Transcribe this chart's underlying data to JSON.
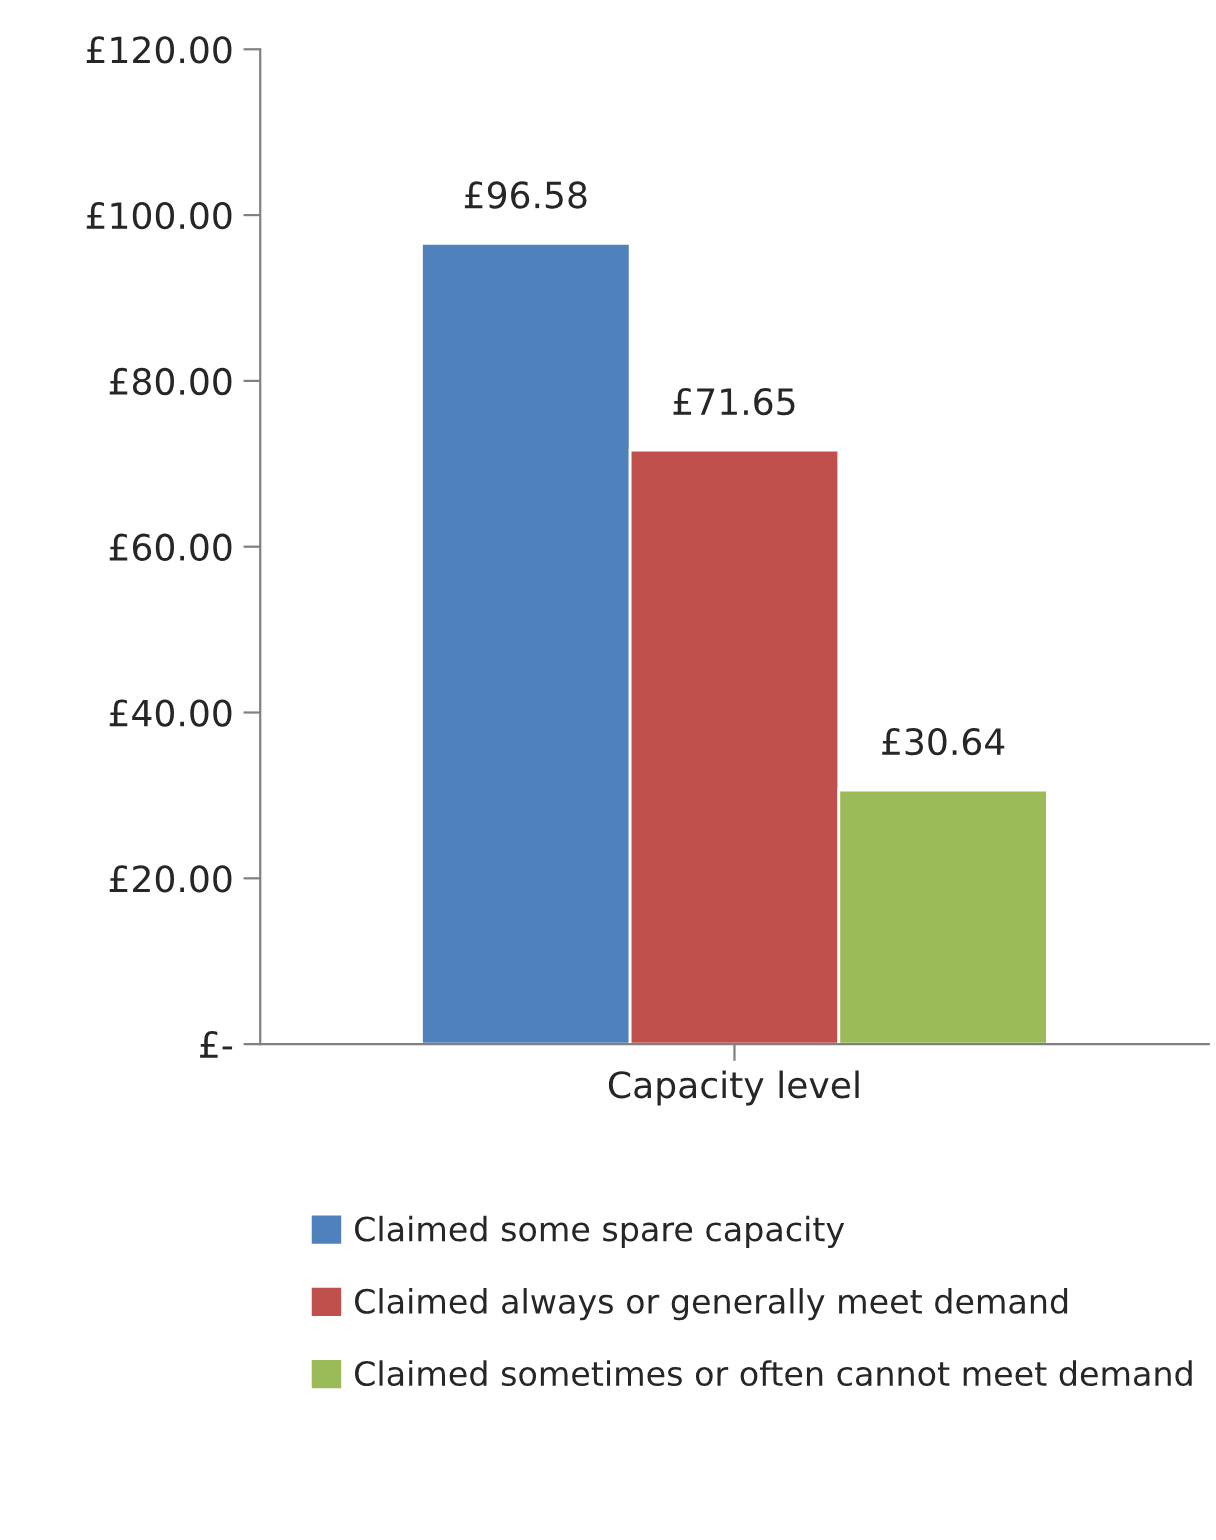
{
  "chart_data": {
    "type": "bar",
    "categories": [
      "Capacity level"
    ],
    "series": [
      {
        "name": "Claimed some spare capacity",
        "color": "#4f81bd",
        "values": [
          96.58
        ],
        "value_labels": [
          "£96.58"
        ]
      },
      {
        "name": "Claimed always or generally meet demand",
        "color": "#c0504d",
        "values": [
          71.65
        ],
        "value_labels": [
          "£71.65"
        ]
      },
      {
        "name": "Claimed sometimes or often cannot meet demand",
        "color": "#9bbb59",
        "values": [
          30.64
        ],
        "value_labels": [
          "£30.64"
        ]
      }
    ],
    "ylim": [
      0,
      120
    ],
    "yticks": [
      {
        "value": 0,
        "label": "£-"
      },
      {
        "value": 20,
        "label": "£20.00"
      },
      {
        "value": 40,
        "label": "£40.00"
      },
      {
        "value": 60,
        "label": "£60.00"
      },
      {
        "value": 80,
        "label": "£80.00"
      },
      {
        "value": 100,
        "label": "£100.00"
      },
      {
        "value": 120,
        "label": "£120.00"
      }
    ],
    "grid": false,
    "legend": "bottom"
  }
}
